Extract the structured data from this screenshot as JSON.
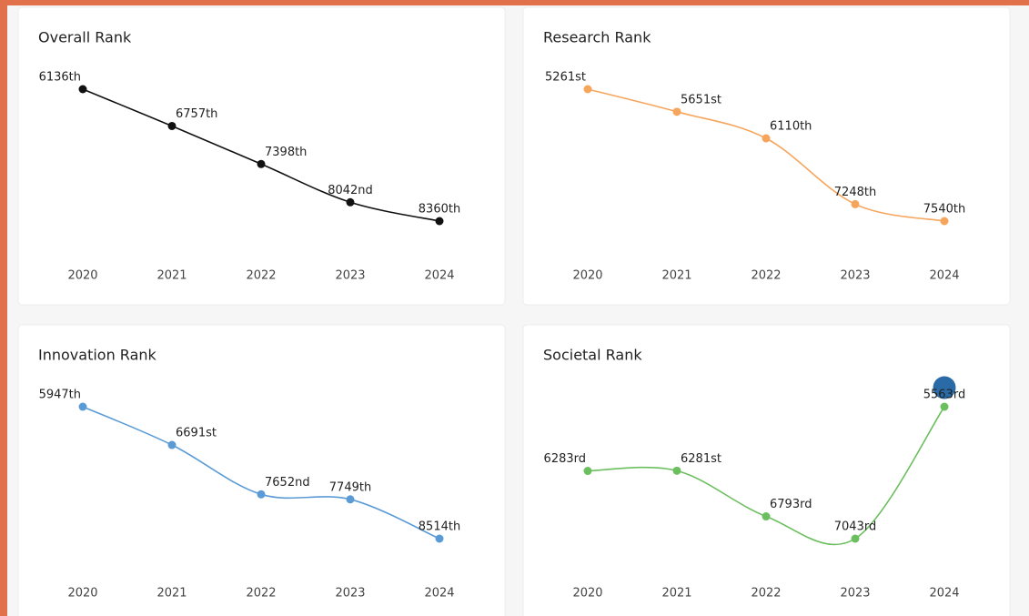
{
  "chart_data": [
    {
      "type": "line",
      "title": "Overall Rank",
      "categories": [
        "2020",
        "2021",
        "2022",
        "2023",
        "2024"
      ],
      "series": [
        {
          "color": "#111111",
          "values": [
            6136,
            6757,
            7398,
            8042,
            8360
          ],
          "value_labels": [
            "6136th",
            "6757th",
            "7398th",
            "8042nd",
            "8360th"
          ]
        }
      ]
    },
    {
      "type": "line",
      "title": "Research Rank",
      "categories": [
        "2020",
        "2021",
        "2022",
        "2023",
        "2024"
      ],
      "series": [
        {
          "color": "#f6a55c",
          "values": [
            5261,
            5651,
            6110,
            7248,
            7540
          ],
          "value_labels": [
            "5261st",
            "5651st",
            "6110th",
            "7248th",
            "7540th"
          ]
        }
      ]
    },
    {
      "type": "line",
      "title": "Innovation Rank",
      "categories": [
        "2020",
        "2021",
        "2022",
        "2023",
        "2024"
      ],
      "series": [
        {
          "color": "#5b9bd5",
          "values": [
            5947,
            6691,
            7652,
            7749,
            8514
          ],
          "value_labels": [
            "5947th",
            "6691st",
            "7652nd",
            "7749th",
            "8514th"
          ]
        }
      ]
    },
    {
      "type": "line",
      "title": "Societal Rank",
      "categories": [
        "2020",
        "2021",
        "2022",
        "2023",
        "2024"
      ],
      "series": [
        {
          "color": "#6cbf5f",
          "values": [
            6283,
            6281,
            6793,
            7043,
            5563
          ],
          "value_labels": [
            "6283rd",
            "6281st",
            "6793rd",
            "7043rd",
            "5563rd"
          ]
        }
      ],
      "highlight_color": "#2a6aa6"
    }
  ]
}
